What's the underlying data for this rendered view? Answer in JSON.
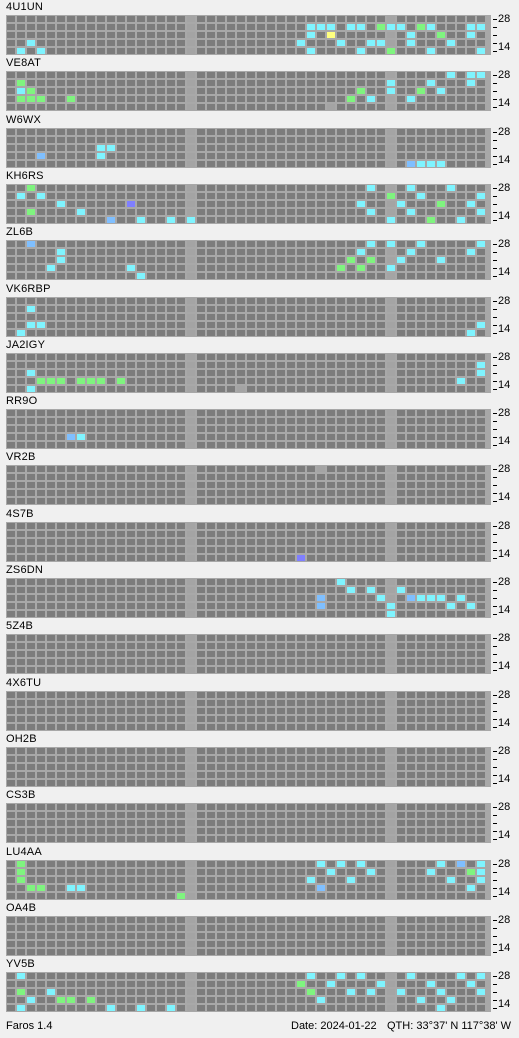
{
  "app": {
    "version_label": "Faros 1.4"
  },
  "status": {
    "date": "Date: 2024-01-22",
    "qth": "QTH: 33°37' N  117°38' W"
  },
  "bands": {
    "top": "28",
    "bottom": "14"
  },
  "colors": {
    "grid": "#a8a8a8",
    "empty": "#7c7c7c",
    "gap": "#a4a4a4",
    "cyan": "#7ff4ff",
    "green": "#7ff47f",
    "teal": "#7fffd4",
    "sky": "#7fbfff",
    "violet": "#7f7fff",
    "yellow": "#ffff7f"
  },
  "stations": [
    {
      "call": "4U1UN",
      "cells": [
        [
          "s",
          300,
          1,
          "c"
        ],
        [
          "s",
          310,
          1,
          "c"
        ],
        [
          "s",
          320,
          1,
          "c"
        ],
        [
          "s",
          340,
          1,
          "c"
        ],
        [
          "s",
          350,
          1,
          "c"
        ],
        [
          "s",
          370,
          1,
          "g"
        ],
        [
          "s",
          380,
          1,
          "c"
        ],
        [
          "s",
          390,
          1,
          "c"
        ],
        [
          "s",
          410,
          1,
          "g"
        ],
        [
          "s",
          420,
          1,
          "c"
        ],
        [
          "s",
          455,
          1,
          "c"
        ],
        [
          "s",
          470,
          1,
          "c"
        ],
        [
          "s",
          480,
          1,
          "c"
        ],
        [
          "s",
          300,
          2,
          "c"
        ],
        [
          "s",
          320,
          2,
          "y"
        ],
        [
          "s",
          400,
          2,
          "c"
        ],
        [
          "s",
          430,
          2,
          "g"
        ],
        [
          "s",
          460,
          2,
          "c"
        ],
        [
          "s",
          290,
          3,
          "c"
        ],
        [
          "s",
          330,
          3,
          "c"
        ],
        [
          "s",
          360,
          3,
          "c"
        ],
        [
          "s",
          370,
          3,
          "c"
        ],
        [
          "s",
          400,
          3,
          "c"
        ],
        [
          "s",
          440,
          3,
          "c"
        ],
        [
          "s",
          20,
          3,
          "c"
        ],
        [
          "s",
          300,
          4,
          "c"
        ],
        [
          "s",
          350,
          4,
          "c"
        ],
        [
          "s",
          380,
          4,
          "g"
        ],
        [
          "s",
          420,
          4,
          "c"
        ],
        [
          "s",
          470,
          4,
          "c"
        ],
        [
          "s",
          8,
          4,
          "c"
        ],
        [
          "s",
          30,
          4,
          "c"
        ]
      ]
    },
    {
      "call": "VE8AT",
      "cells": [
        [
          "s",
          440,
          0,
          "c"
        ],
        [
          "s",
          460,
          0,
          "c"
        ],
        [
          "s",
          470,
          0,
          "c"
        ],
        [
          "s",
          10,
          1,
          "g"
        ],
        [
          "s",
          380,
          1,
          "c"
        ],
        [
          "s",
          420,
          1,
          "c"
        ],
        [
          "s",
          460,
          1,
          "c"
        ],
        [
          "s",
          350,
          2,
          "g"
        ],
        [
          "s",
          380,
          2,
          "c"
        ],
        [
          "s",
          410,
          2,
          "g"
        ],
        [
          "s",
          430,
          2,
          "c"
        ],
        [
          "s",
          10,
          2,
          "c"
        ],
        [
          "s",
          20,
          2,
          "g"
        ],
        [
          "s",
          30,
          3,
          "g"
        ],
        [
          "s",
          340,
          3,
          "g"
        ],
        [
          "s",
          360,
          3,
          "c"
        ],
        [
          "s",
          400,
          3,
          "c"
        ],
        [
          "s",
          10,
          3,
          "g"
        ],
        [
          "s",
          20,
          3,
          "g"
        ],
        [
          "s",
          60,
          3,
          "g"
        ],
        [
          "s",
          320,
          4,
          "e"
        ]
      ]
    },
    {
      "call": "W6WX",
      "cells": [
        [
          "s",
          90,
          2,
          "c"
        ],
        [
          "s",
          100,
          2,
          "c"
        ],
        [
          "s",
          25,
          3,
          "s"
        ],
        [
          "s",
          85,
          3,
          "c"
        ],
        [
          "s",
          400,
          4,
          "s"
        ],
        [
          "s",
          410,
          4,
          "c"
        ],
        [
          "s",
          420,
          4,
          "c"
        ],
        [
          "s",
          430,
          4,
          "c"
        ]
      ]
    },
    {
      "call": "KH6RS",
      "cells": [
        [
          "s",
          20,
          0,
          "g"
        ],
        [
          "s",
          360,
          0,
          "c"
        ],
        [
          "s",
          400,
          0,
          "c"
        ],
        [
          "s",
          440,
          0,
          "c"
        ],
        [
          "s",
          10,
          1,
          "c"
        ],
        [
          "s",
          30,
          1,
          "c"
        ],
        [
          "s",
          380,
          1,
          "g"
        ],
        [
          "s",
          410,
          1,
          "c"
        ],
        [
          "s",
          470,
          1,
          "c"
        ],
        [
          "s",
          120,
          2,
          "v"
        ],
        [
          "s",
          50,
          2,
          "c"
        ],
        [
          "s",
          350,
          2,
          "c"
        ],
        [
          "s",
          390,
          2,
          "c"
        ],
        [
          "s",
          430,
          2,
          "g"
        ],
        [
          "s",
          460,
          2,
          "c"
        ],
        [
          "s",
          20,
          3,
          "g"
        ],
        [
          "s",
          70,
          3,
          "c"
        ],
        [
          "s",
          360,
          3,
          "c"
        ],
        [
          "s",
          400,
          3,
          "c"
        ],
        [
          "s",
          480,
          3,
          "c"
        ],
        [
          "s",
          100,
          4,
          "s"
        ],
        [
          "s",
          130,
          4,
          "c"
        ],
        [
          "s",
          160,
          4,
          "c"
        ],
        [
          "s",
          180,
          4,
          "c"
        ],
        [
          "s",
          380,
          4,
          "c"
        ],
        [
          "s",
          420,
          4,
          "g"
        ],
        [
          "s",
          450,
          4,
          "c"
        ]
      ]
    },
    {
      "call": "ZL6B",
      "cells": [
        [
          "s",
          15,
          0,
          "s"
        ],
        [
          "s",
          360,
          0,
          "c"
        ],
        [
          "s",
          380,
          0,
          "c"
        ],
        [
          "s",
          410,
          0,
          "c"
        ],
        [
          "s",
          480,
          0,
          "c"
        ],
        [
          "s",
          50,
          1,
          "c"
        ],
        [
          "s",
          350,
          1,
          "c"
        ],
        [
          "s",
          400,
          1,
          "c"
        ],
        [
          "s",
          460,
          1,
          "c"
        ],
        [
          "s",
          50,
          2,
          "c"
        ],
        [
          "s",
          340,
          2,
          "g"
        ],
        [
          "s",
          360,
          2,
          "g"
        ],
        [
          "s",
          390,
          2,
          "c"
        ],
        [
          "s",
          430,
          2,
          "c"
        ],
        [
          "s",
          40,
          3,
          "c"
        ],
        [
          "s",
          330,
          3,
          "g"
        ],
        [
          "s",
          350,
          3,
          "g"
        ],
        [
          "s",
          380,
          3,
          "c"
        ],
        [
          "s",
          120,
          3,
          "c"
        ],
        [
          "s",
          125,
          4,
          "c"
        ]
      ]
    },
    {
      "call": "VK6RBP",
      "cells": [
        [
          "s",
          15,
          1,
          "c"
        ],
        [
          "s",
          20,
          3,
          "c"
        ],
        [
          "s",
          30,
          3,
          "c"
        ],
        [
          "s",
          470,
          3,
          "c"
        ],
        [
          "s",
          10,
          4,
          "c"
        ],
        [
          "s",
          460,
          4,
          "c"
        ]
      ]
    },
    {
      "call": "JA2IGY",
      "cells": [
        [
          "s",
          470,
          1,
          "c"
        ],
        [
          "s",
          485,
          1,
          "c"
        ],
        [
          "s",
          20,
          2,
          "c"
        ],
        [
          "s",
          480,
          2,
          "c"
        ],
        [
          "s",
          30,
          3,
          "g"
        ],
        [
          "s",
          40,
          3,
          "g"
        ],
        [
          "s",
          50,
          3,
          "g"
        ],
        [
          "s",
          70,
          3,
          "g"
        ],
        [
          "s",
          80,
          3,
          "g"
        ],
        [
          "s",
          90,
          3,
          "g"
        ],
        [
          "s",
          105,
          3,
          "g"
        ],
        [
          "s",
          450,
          3,
          "c"
        ],
        [
          "s",
          15,
          4,
          "c"
        ],
        [
          "s",
          230,
          4,
          "e"
        ]
      ]
    },
    {
      "call": "RR9O",
      "cells": [
        [
          "s",
          60,
          3,
          "s"
        ],
        [
          "s",
          70,
          3,
          "c"
        ]
      ]
    },
    {
      "call": "VR2B",
      "cells": [
        [
          "s",
          310,
          0,
          "e"
        ]
      ]
    },
    {
      "call": "4S7B",
      "cells": [
        [
          "s",
          285,
          4,
          "v"
        ]
      ]
    },
    {
      "call": "ZS6DN",
      "cells": [
        [
          "s",
          330,
          0,
          "c"
        ],
        [
          "s",
          340,
          1,
          "c"
        ],
        [
          "s",
          360,
          1,
          "c"
        ],
        [
          "s",
          390,
          1,
          "c"
        ],
        [
          "s",
          310,
          2,
          "s"
        ],
        [
          "s",
          370,
          2,
          "c"
        ],
        [
          "s",
          400,
          2,
          "s"
        ],
        [
          "s",
          410,
          2,
          "c"
        ],
        [
          "s",
          420,
          2,
          "c"
        ],
        [
          "s",
          430,
          2,
          "c"
        ],
        [
          "s",
          450,
          2,
          "c"
        ],
        [
          "s",
          310,
          3,
          "s"
        ],
        [
          "s",
          380,
          3,
          "c"
        ],
        [
          "s",
          440,
          3,
          "c"
        ],
        [
          "s",
          460,
          3,
          "c"
        ],
        [
          "s",
          380,
          4,
          "c"
        ]
      ]
    },
    {
      "call": "5Z4B",
      "cells": []
    },
    {
      "call": "4X6TU",
      "cells": []
    },
    {
      "call": "OH2B",
      "cells": []
    },
    {
      "call": "CS3B",
      "cells": []
    },
    {
      "call": "LU4AA",
      "cells": [
        [
          "s",
          10,
          0,
          "g"
        ],
        [
          "s",
          310,
          0,
          "c"
        ],
        [
          "s",
          330,
          0,
          "c"
        ],
        [
          "s",
          350,
          0,
          "c"
        ],
        [
          "s",
          430,
          0,
          "c"
        ],
        [
          "s",
          450,
          0,
          "s"
        ],
        [
          "s",
          470,
          0,
          "c"
        ],
        [
          "s",
          10,
          1,
          "g"
        ],
        [
          "s",
          320,
          1,
          "c"
        ],
        [
          "s",
          360,
          1,
          "c"
        ],
        [
          "s",
          420,
          1,
          "c"
        ],
        [
          "s",
          460,
          1,
          "g"
        ],
        [
          "s",
          480,
          1,
          "c"
        ],
        [
          "s",
          10,
          2,
          "g"
        ],
        [
          "s",
          300,
          2,
          "c"
        ],
        [
          "s",
          340,
          2,
          "c"
        ],
        [
          "s",
          440,
          2,
          "c"
        ],
        [
          "s",
          470,
          2,
          "c"
        ],
        [
          "s",
          20,
          3,
          "g"
        ],
        [
          "s",
          30,
          3,
          "g"
        ],
        [
          "s",
          60,
          3,
          "c"
        ],
        [
          "s",
          70,
          3,
          "c"
        ],
        [
          "s",
          310,
          3,
          "s"
        ],
        [
          "s",
          460,
          3,
          "c"
        ],
        [
          "s",
          170,
          4,
          "g"
        ]
      ]
    },
    {
      "call": "OA4B",
      "cells": []
    },
    {
      "call": "YV5B",
      "cells": [
        [
          "s",
          10,
          0,
          "c"
        ],
        [
          "s",
          300,
          0,
          "c"
        ],
        [
          "s",
          330,
          0,
          "c"
        ],
        [
          "s",
          350,
          0,
          "c"
        ],
        [
          "s",
          400,
          0,
          "c"
        ],
        [
          "s",
          450,
          0,
          "c"
        ],
        [
          "s",
          470,
          0,
          "c"
        ],
        [
          "s",
          290,
          1,
          "g"
        ],
        [
          "s",
          320,
          1,
          "c"
        ],
        [
          "s",
          370,
          1,
          "c"
        ],
        [
          "s",
          420,
          1,
          "c"
        ],
        [
          "s",
          460,
          1,
          "c"
        ],
        [
          "s",
          10,
          2,
          "g"
        ],
        [
          "s",
          40,
          2,
          "c"
        ],
        [
          "s",
          300,
          2,
          "g"
        ],
        [
          "s",
          340,
          2,
          "c"
        ],
        [
          "s",
          360,
          2,
          "c"
        ],
        [
          "s",
          390,
          2,
          "c"
        ],
        [
          "s",
          430,
          2,
          "c"
        ],
        [
          "s",
          480,
          2,
          "c"
        ],
        [
          "s",
          20,
          3,
          "c"
        ],
        [
          "s",
          50,
          3,
          "g"
        ],
        [
          "s",
          60,
          3,
          "g"
        ],
        [
          "s",
          80,
          3,
          "g"
        ],
        [
          "s",
          310,
          3,
          "c"
        ],
        [
          "s",
          410,
          3,
          "c"
        ],
        [
          "s",
          440,
          3,
          "c"
        ],
        [
          "s",
          10,
          4,
          "c"
        ],
        [
          "s",
          100,
          4,
          "c"
        ],
        [
          "s",
          125,
          4,
          "c"
        ],
        [
          "s",
          155,
          4,
          "c"
        ],
        [
          "s",
          430,
          4,
          "c"
        ]
      ]
    }
  ]
}
